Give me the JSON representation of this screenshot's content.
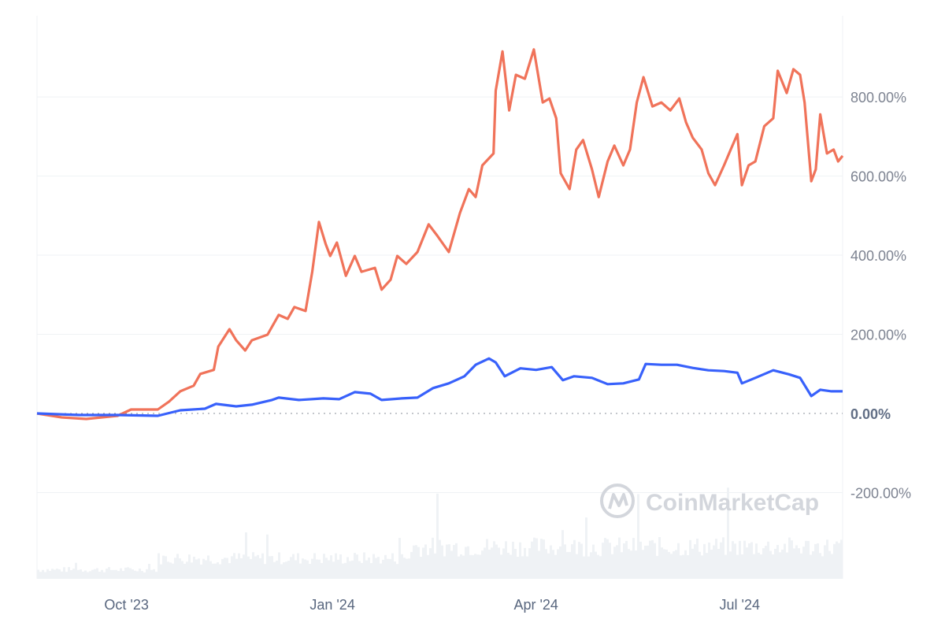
{
  "chart_data": {
    "type": "line",
    "title": "",
    "xlabel": "",
    "ylabel": "",
    "x_range": [
      "2023-08-22",
      "2024-08-16"
    ],
    "ylim": [
      -418,
      1045
    ],
    "y_axis_position": "right",
    "y_ticks": [
      "800.00%",
      "600.00%",
      "400.00%",
      "200.00%",
      "0.00%",
      "-200.00%"
    ],
    "y_tick_values": [
      800,
      600,
      400,
      200,
      0,
      -200
    ],
    "x_ticks": [
      {
        "label": "Oct '23",
        "date": "2023-10-01"
      },
      {
        "label": "Jan '24",
        "date": "2024-01-01"
      },
      {
        "label": "Apr '24",
        "date": "2024-04-01"
      },
      {
        "label": "Jul '24",
        "date": "2024-07-01"
      }
    ],
    "grid": "horizontal",
    "zero_line": "dotted",
    "watermark": "CoinMarketCap",
    "series": [
      {
        "color": "#f0735a",
        "points": [
          [
            "2023-08-22",
            0
          ],
          [
            "2023-09-02",
            -10
          ],
          [
            "2023-09-13",
            -14
          ],
          [
            "2023-09-27",
            -6
          ],
          [
            "2023-10-03",
            10
          ],
          [
            "2023-10-15",
            10
          ],
          [
            "2023-10-20",
            30
          ],
          [
            "2023-10-25",
            56
          ],
          [
            "2023-10-31",
            70
          ],
          [
            "2023-11-03",
            100
          ],
          [
            "2023-11-09",
            110
          ],
          [
            "2023-11-11",
            169
          ],
          [
            "2023-11-16",
            213
          ],
          [
            "2023-11-19",
            185
          ],
          [
            "2023-11-23",
            159
          ],
          [
            "2023-11-26",
            185
          ],
          [
            "2023-12-03",
            199
          ],
          [
            "2023-12-08",
            249
          ],
          [
            "2023-12-12",
            239
          ],
          [
            "2023-12-15",
            269
          ],
          [
            "2023-12-20",
            259
          ],
          [
            "2023-12-23",
            358
          ],
          [
            "2023-12-26",
            484
          ],
          [
            "2023-12-29",
            428
          ],
          [
            "2023-12-31",
            398
          ],
          [
            "2024-01-03",
            432
          ],
          [
            "2024-01-07",
            348
          ],
          [
            "2024-01-11",
            398
          ],
          [
            "2024-01-14",
            358
          ],
          [
            "2024-01-20",
            368
          ],
          [
            "2024-01-23",
            313
          ],
          [
            "2024-01-27",
            338
          ],
          [
            "2024-01-30",
            398
          ],
          [
            "2024-02-03",
            378
          ],
          [
            "2024-02-08",
            408
          ],
          [
            "2024-02-13",
            478
          ],
          [
            "2024-02-17",
            448
          ],
          [
            "2024-02-22",
            408
          ],
          [
            "2024-02-27",
            507
          ],
          [
            "2024-03-02",
            567
          ],
          [
            "2024-03-05",
            547
          ],
          [
            "2024-03-08",
            627
          ],
          [
            "2024-03-13",
            657
          ],
          [
            "2024-03-14",
            816
          ],
          [
            "2024-03-17",
            915
          ],
          [
            "2024-03-20",
            766
          ],
          [
            "2024-03-23",
            856
          ],
          [
            "2024-03-27",
            846
          ],
          [
            "2024-03-31",
            920
          ],
          [
            "2024-04-04",
            786
          ],
          [
            "2024-04-07",
            796
          ],
          [
            "2024-04-10",
            746
          ],
          [
            "2024-04-12",
            607
          ],
          [
            "2024-04-16",
            567
          ],
          [
            "2024-04-19",
            667
          ],
          [
            "2024-04-22",
            691
          ],
          [
            "2024-04-26",
            617
          ],
          [
            "2024-04-29",
            547
          ],
          [
            "2024-05-03",
            637
          ],
          [
            "2024-05-06",
            677
          ],
          [
            "2024-05-10",
            627
          ],
          [
            "2024-05-13",
            667
          ],
          [
            "2024-05-16",
            786
          ],
          [
            "2024-05-19",
            850
          ],
          [
            "2024-05-23",
            776
          ],
          [
            "2024-05-27",
            786
          ],
          [
            "2024-05-31",
            766
          ],
          [
            "2024-06-04",
            796
          ],
          [
            "2024-06-07",
            736
          ],
          [
            "2024-06-10",
            697
          ],
          [
            "2024-06-14",
            667
          ],
          [
            "2024-06-17",
            607
          ],
          [
            "2024-06-20",
            577
          ],
          [
            "2024-06-24",
            627
          ],
          [
            "2024-06-27",
            667
          ],
          [
            "2024-06-30",
            706
          ],
          [
            "2024-07-02",
            577
          ],
          [
            "2024-07-05",
            627
          ],
          [
            "2024-07-08",
            637
          ],
          [
            "2024-07-12",
            726
          ],
          [
            "2024-07-16",
            746
          ],
          [
            "2024-07-18",
            866
          ],
          [
            "2024-07-22",
            810
          ],
          [
            "2024-07-25",
            870
          ],
          [
            "2024-07-28",
            856
          ],
          [
            "2024-07-30",
            786
          ],
          [
            "2024-08-02",
            587
          ],
          [
            "2024-08-04",
            617
          ],
          [
            "2024-08-06",
            756
          ],
          [
            "2024-08-09",
            657
          ],
          [
            "2024-08-12",
            667
          ],
          [
            "2024-08-14",
            637
          ],
          [
            "2024-08-16",
            651
          ]
        ]
      },
      {
        "color": "#3861fb",
        "points": [
          [
            "2023-08-22",
            0
          ],
          [
            "2023-09-10",
            -4
          ],
          [
            "2023-09-27",
            -4
          ],
          [
            "2023-10-15",
            -6
          ],
          [
            "2023-10-25",
            8
          ],
          [
            "2023-11-05",
            12
          ],
          [
            "2023-11-10",
            24
          ],
          [
            "2023-11-19",
            18
          ],
          [
            "2023-11-26",
            22
          ],
          [
            "2023-12-05",
            34
          ],
          [
            "2023-12-08",
            40
          ],
          [
            "2023-12-17",
            34
          ],
          [
            "2023-12-28",
            38
          ],
          [
            "2024-01-04",
            36
          ],
          [
            "2024-01-11",
            54
          ],
          [
            "2024-01-18",
            50
          ],
          [
            "2024-01-23",
            34
          ],
          [
            "2024-02-01",
            38
          ],
          [
            "2024-02-08",
            40
          ],
          [
            "2024-02-15",
            64
          ],
          [
            "2024-02-22",
            76
          ],
          [
            "2024-02-29",
            94
          ],
          [
            "2024-03-05",
            123
          ],
          [
            "2024-03-11",
            139
          ],
          [
            "2024-03-14",
            129
          ],
          [
            "2024-03-18",
            94
          ],
          [
            "2024-03-25",
            114
          ],
          [
            "2024-04-01",
            110
          ],
          [
            "2024-04-08",
            117
          ],
          [
            "2024-04-13",
            84
          ],
          [
            "2024-04-18",
            94
          ],
          [
            "2024-04-26",
            90
          ],
          [
            "2024-05-03",
            74
          ],
          [
            "2024-05-10",
            76
          ],
          [
            "2024-05-17",
            86
          ],
          [
            "2024-05-20",
            125
          ],
          [
            "2024-05-27",
            123
          ],
          [
            "2024-06-03",
            123
          ],
          [
            "2024-06-10",
            115
          ],
          [
            "2024-06-17",
            109
          ],
          [
            "2024-06-24",
            107
          ],
          [
            "2024-06-30",
            103
          ],
          [
            "2024-07-02",
            76
          ],
          [
            "2024-07-08",
            90
          ],
          [
            "2024-07-16",
            109
          ],
          [
            "2024-07-23",
            99
          ],
          [
            "2024-07-28",
            90
          ],
          [
            "2024-08-02",
            44
          ],
          [
            "2024-08-06",
            60
          ],
          [
            "2024-08-11",
            56
          ],
          [
            "2024-08-16",
            56
          ]
        ]
      }
    ],
    "colors": {
      "grid": "#eff2f5",
      "volume": "#eff2f5",
      "axis_text": "#7d8391"
    }
  }
}
